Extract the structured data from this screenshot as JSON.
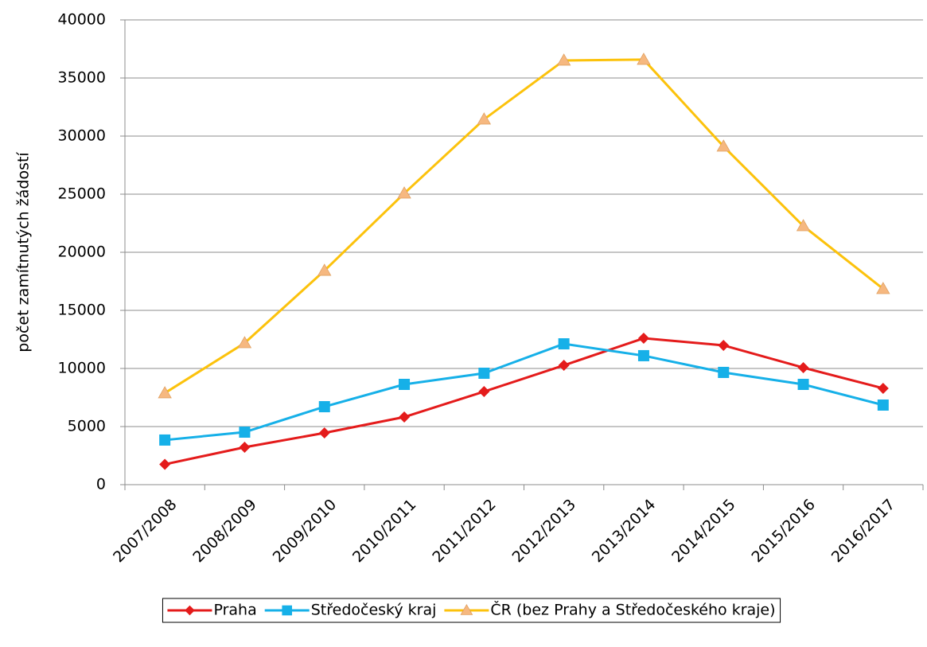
{
  "chart_data": {
    "type": "line",
    "y_label": "počet zamítnutých žádostí",
    "categories": [
      "2007/2008",
      "2008/2009",
      "2009/2010",
      "2010/2011",
      "2011/2012",
      "2012/2013",
      "2013/2014",
      "2014/2015",
      "2015/2016",
      "2016/2017"
    ],
    "series": [
      {
        "name": "Praha",
        "color": "#e41b1b",
        "marker": "diamond",
        "marker_color": "#e41b1b",
        "values": [
          1750,
          3220,
          4450,
          5820,
          8010,
          10270,
          12600,
          11990,
          10070,
          8290
        ]
      },
      {
        "name": "Středočeský kraj",
        "color": "#16b0e8",
        "marker": "square",
        "marker_color": "#16b0e8",
        "values": [
          3840,
          4520,
          6710,
          8630,
          9590,
          12120,
          11100,
          9660,
          8630,
          6850
        ]
      },
      {
        "name": "ČR (bez Prahy a Středočeského kraje)",
        "color": "#fcc20c",
        "marker": "triangle",
        "marker_color": "#f6b880",
        "values": [
          7880,
          12190,
          18420,
          25070,
          31440,
          36510,
          36580,
          29110,
          22260,
          16850
        ]
      }
    ],
    "ylim": [
      0,
      40000
    ],
    "yticks": [
      0,
      5000,
      10000,
      15000,
      20000,
      25000,
      30000,
      35000,
      40000
    ],
    "grid": true,
    "legend": "bottom"
  }
}
